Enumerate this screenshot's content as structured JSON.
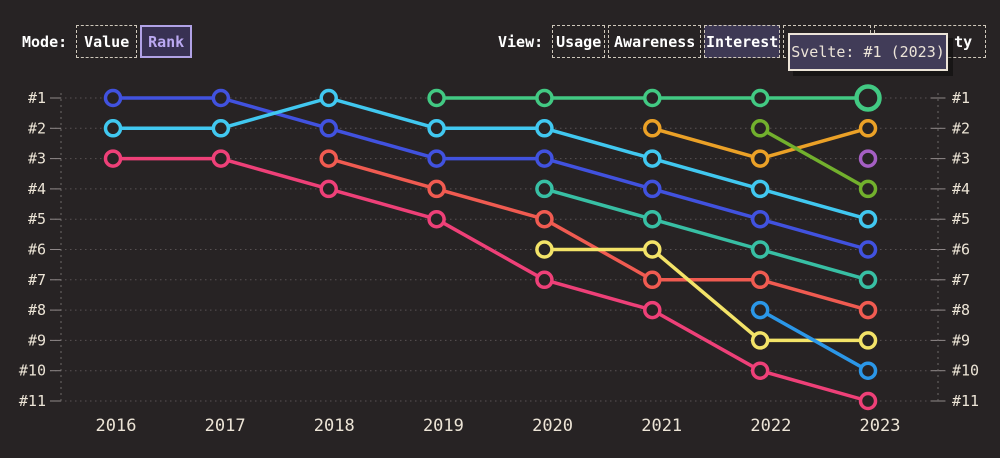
{
  "header": {
    "mode": {
      "label": "Mode:",
      "options": [
        {
          "label": "Value",
          "selected": false
        },
        {
          "label": "Rank",
          "selected": true
        }
      ]
    },
    "view": {
      "label": "View:",
      "options": [
        {
          "label": "Usage",
          "selected": false
        },
        {
          "label": "Awareness",
          "selected": false
        },
        {
          "label": "Interest",
          "selected": true
        },
        {
          "label": "",
          "selected": false,
          "note": "fully hidden behind tooltip"
        },
        {
          "label": "ty",
          "selected": false,
          "note": "only last two letters visible beside tooltip"
        }
      ]
    }
  },
  "tooltip": {
    "text": "Svelte: #1 (2023)"
  },
  "chart_data": {
    "type": "line",
    "subtype": "bump-rank-chart",
    "title": "",
    "x": [
      2016,
      2017,
      2018,
      2019,
      2020,
      2021,
      2022,
      2023
    ],
    "rank_axis_labels": [
      "#1",
      "#2",
      "#3",
      "#4",
      "#5",
      "#6",
      "#7",
      "#8",
      "#9",
      "#10",
      "#11"
    ],
    "ylim_ranks": [
      1,
      11
    ],
    "grid": true,
    "series": [
      {
        "label": "",
        "color": "#4152df",
        "ranks": [
          1,
          1,
          2,
          3,
          3,
          4,
          5,
          6
        ]
      },
      {
        "label": "",
        "color": "#41c8f0",
        "ranks": [
          2,
          2,
          1,
          2,
          2,
          3,
          4,
          5
        ]
      },
      {
        "label": "",
        "color": "#ee4078",
        "ranks": [
          3,
          3,
          4,
          5,
          7,
          8,
          10,
          11
        ]
      },
      {
        "label": "",
        "color": "#f05b51",
        "ranks": [
          null,
          null,
          3,
          4,
          5,
          7,
          7,
          8
        ]
      },
      {
        "label": "Svelte",
        "color": "#42c983",
        "ranks": [
          null,
          null,
          null,
          1,
          1,
          1,
          1,
          1
        ]
      },
      {
        "label": "",
        "color": "#38bfa4",
        "ranks": [
          null,
          null,
          null,
          null,
          4,
          5,
          6,
          7
        ]
      },
      {
        "label": "",
        "color": "#f3e368",
        "ranks": [
          null,
          null,
          null,
          null,
          6,
          6,
          9,
          9
        ]
      },
      {
        "label": "",
        "color": "#eba127",
        "ranks": [
          null,
          null,
          null,
          null,
          null,
          2,
          3,
          2
        ]
      },
      {
        "label": "",
        "color": "#72b02d",
        "ranks": [
          null,
          null,
          null,
          null,
          null,
          null,
          2,
          4
        ]
      },
      {
        "label": "",
        "color": "#2b97e8",
        "ranks": [
          null,
          null,
          null,
          null,
          null,
          null,
          8,
          10
        ]
      },
      {
        "label": "",
        "color": "#a55fc3",
        "ranks": [
          null,
          null,
          null,
          null,
          null,
          null,
          null,
          3
        ]
      }
    ],
    "highlight": {
      "series_label": "Svelte",
      "year": 2023,
      "rank": 1
    }
  },
  "colors": {
    "background": "#272324",
    "grid": "#585253",
    "axis_dash": "#6e6869",
    "tick": "#8f8889",
    "label_cream": "#ece4d6",
    "tooltip_bg": "#413c58",
    "selected_fill": "#3e3954",
    "rank_button_border": "#b1a2e6"
  }
}
